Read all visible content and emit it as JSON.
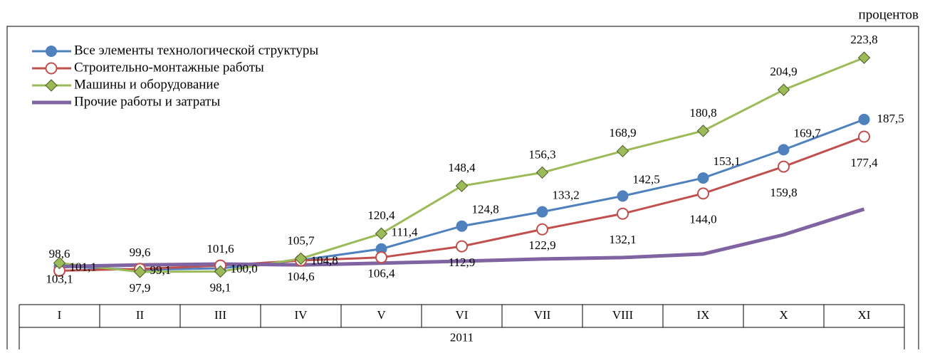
{
  "unit_label": "процентов",
  "chart_data": {
    "type": "line",
    "categories": [
      "I",
      "II",
      "III",
      "IV",
      "V",
      "VI",
      "VII",
      "VIII",
      "IX",
      "X",
      "XI"
    ],
    "period": "2011",
    "ylim": [
      82,
      241
    ],
    "legend": "top-left",
    "series": [
      {
        "name": "Все элементы технологической структуры",
        "color": "#4f81bd",
        "marker": "circle",
        "values": [
          101.1,
          99.1,
          100.0,
          104.8,
          111.4,
          124.8,
          133.2,
          142.5,
          153.1,
          169.7,
          187.5
        ],
        "value_labels": [
          "101,1",
          "99,1",
          "100,0",
          "104,8",
          "111,4",
          "124,8",
          "133,2",
          "142,5",
          "153,1",
          "169,7",
          "187,5"
        ]
      },
      {
        "name": "Строительно-монтажные работы",
        "color": "#c0504d",
        "marker": "open-circle",
        "values": [
          98.6,
          99.6,
          101.6,
          104.6,
          106.4,
          112.9,
          122.9,
          132.1,
          144.0,
          159.8,
          177.4
        ],
        "value_labels": [
          "98,6",
          "99,6",
          "101,6",
          "104,6",
          "106,4",
          "112,9",
          "122,9",
          "132,1",
          "144,0",
          "159,8",
          "177,4"
        ]
      },
      {
        "name": "Машины и оборудование",
        "color": "#9bbb59",
        "marker": "diamond",
        "values": [
          103.1,
          97.9,
          98.1,
          105.7,
          120.4,
          148.4,
          156.3,
          168.9,
          180.8,
          204.9,
          223.8
        ],
        "value_labels": [
          "103,1",
          "97,9",
          "98,1",
          "105,7",
          "120,4",
          "148,4",
          "156,3",
          "168,9",
          "180,8",
          "204,9",
          "223,8"
        ]
      },
      {
        "name": "Прочие работы и затраты",
        "color": "#8064a2",
        "marker": "none",
        "values": [
          101,
          102,
          102.5,
          102,
          103,
          104.2,
          105.5,
          106.3,
          108.4,
          119.7,
          134.8
        ]
      }
    ]
  }
}
